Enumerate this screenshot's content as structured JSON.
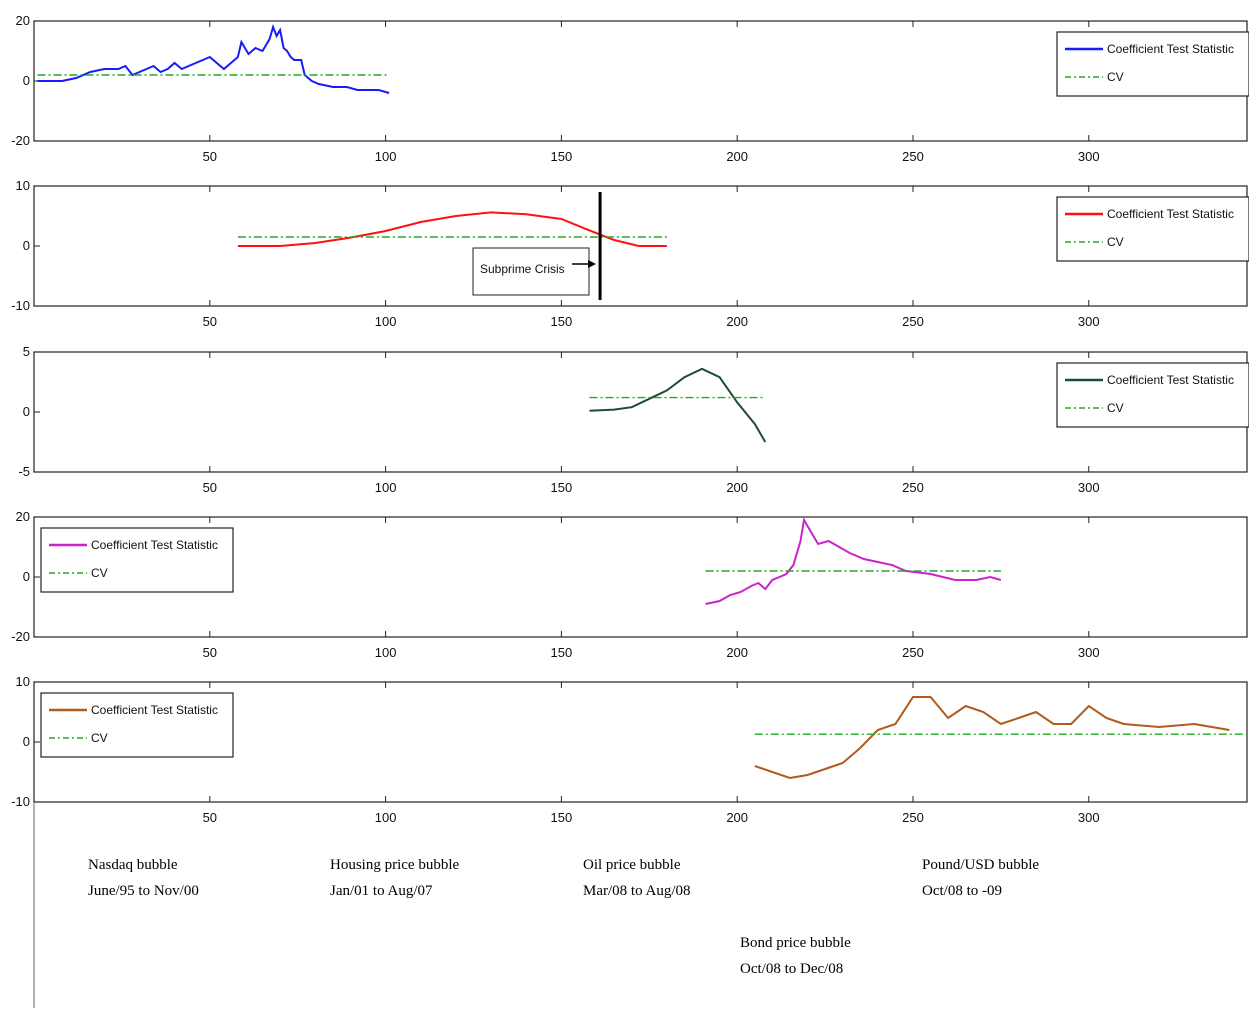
{
  "chart_data": [
    {
      "type": "line",
      "xlim": [
        0,
        345
      ],
      "ylim": [
        -20,
        20
      ],
      "x_ticks": [
        50,
        100,
        150,
        200,
        250,
        300
      ],
      "y_ticks": [
        -20,
        0,
        20
      ],
      "grid": false,
      "legend_position": "top-right",
      "legend_entries": [
        "Coefficient Test Statistic",
        "CV"
      ],
      "series": [
        {
          "name": "Coefficient Test Statistic",
          "color": "#1a1aff",
          "style": "solid",
          "points": [
            [
              1,
              0
            ],
            [
              8,
              0
            ],
            [
              12,
              1
            ],
            [
              16,
              3
            ],
            [
              20,
              4
            ],
            [
              24,
              4
            ],
            [
              26,
              5
            ],
            [
              28,
              2
            ],
            [
              30,
              3
            ],
            [
              32,
              4
            ],
            [
              34,
              5
            ],
            [
              36,
              3
            ],
            [
              38,
              4
            ],
            [
              40,
              6
            ],
            [
              42,
              4
            ],
            [
              44,
              5
            ],
            [
              46,
              6
            ],
            [
              48,
              7
            ],
            [
              50,
              8
            ],
            [
              52,
              6
            ],
            [
              54,
              4
            ],
            [
              56,
              6
            ],
            [
              58,
              8
            ],
            [
              59,
              13
            ],
            [
              61,
              9
            ],
            [
              63,
              11
            ],
            [
              65,
              10
            ],
            [
              67,
              14
            ],
            [
              68,
              18
            ],
            [
              69,
              15
            ],
            [
              70,
              17
            ],
            [
              71,
              11
            ],
            [
              72,
              10
            ],
            [
              73,
              8
            ],
            [
              74,
              7
            ],
            [
              76,
              7
            ],
            [
              77,
              2
            ],
            [
              79,
              0
            ],
            [
              81,
              -1
            ],
            [
              85,
              -2
            ],
            [
              89,
              -2
            ],
            [
              92,
              -3
            ],
            [
              95,
              -3
            ],
            [
              98,
              -3
            ],
            [
              101,
              -4
            ]
          ]
        },
        {
          "name": "CV",
          "color": "#22aa22",
          "style": "dash-dot",
          "points": [
            [
              1,
              2
            ],
            [
              101,
              2
            ]
          ]
        }
      ]
    },
    {
      "type": "line",
      "xlim": [
        0,
        345
      ],
      "ylim": [
        -10,
        10
      ],
      "x_ticks": [
        50,
        100,
        150,
        200,
        250,
        300
      ],
      "y_ticks": [
        -10,
        0,
        10
      ],
      "grid": false,
      "legend_position": "top-right",
      "legend_entries": [
        "Coefficient Test Statistic",
        "CV"
      ],
      "annotation": "Subprime Crisis",
      "event_x": 161,
      "series": [
        {
          "name": "Coefficient Test Statistic",
          "color": "#ff1111",
          "style": "solid",
          "points": [
            [
              58,
              0
            ],
            [
              70,
              0
            ],
            [
              80,
              0.5
            ],
            [
              90,
              1.4
            ],
            [
              100,
              2.5
            ],
            [
              110,
              4
            ],
            [
              120,
              5
            ],
            [
              130,
              5.6
            ],
            [
              140,
              5.3
            ],
            [
              150,
              4.5
            ],
            [
              158,
              2.6
            ],
            [
              165,
              1
            ],
            [
              172,
              0
            ],
            [
              180,
              0
            ]
          ]
        },
        {
          "name": "CV",
          "color": "#22aa22",
          "style": "dash-dot",
          "points": [
            [
              58,
              1.5
            ],
            [
              180,
              1.5
            ]
          ]
        }
      ]
    },
    {
      "type": "line",
      "xlim": [
        0,
        345
      ],
      "ylim": [
        -5,
        5
      ],
      "x_ticks": [
        50,
        100,
        150,
        200,
        250,
        300
      ],
      "y_ticks": [
        -5,
        0,
        5
      ],
      "grid": false,
      "legend_position": "top-right",
      "legend_entries": [
        "Coefficient Test Statistic",
        "CV"
      ],
      "series": [
        {
          "name": "Coefficient Test Statistic",
          "color": "#1e4a3a",
          "style": "solid",
          "points": [
            [
              158,
              0.1
            ],
            [
              165,
              0.2
            ],
            [
              170,
              0.4
            ],
            [
              175,
              1.1
            ],
            [
              180,
              1.8
            ],
            [
              185,
              2.9
            ],
            [
              190,
              3.6
            ],
            [
              195,
              2.9
            ],
            [
              200,
              0.8
            ],
            [
              205,
              -1
            ],
            [
              208,
              -2.5
            ]
          ]
        },
        {
          "name": "CV",
          "color": "#22aa22",
          "style": "dash-dot",
          "points": [
            [
              158,
              1.2
            ],
            [
              208,
              1.2
            ]
          ]
        }
      ]
    },
    {
      "type": "line",
      "xlim": [
        0,
        345
      ],
      "ylim": [
        -20,
        20
      ],
      "x_ticks": [
        50,
        100,
        150,
        200,
        250,
        300
      ],
      "y_ticks": [
        -20,
        0,
        20
      ],
      "grid": false,
      "legend_position": "top-left",
      "legend_entries": [
        "Coefficient Test Statistic",
        "CV"
      ],
      "series": [
        {
          "name": "Coefficient Test Statistic",
          "color": "#cc22cc",
          "style": "solid",
          "points": [
            [
              191,
              -9
            ],
            [
              195,
              -8
            ],
            [
              198,
              -6
            ],
            [
              201,
              -5
            ],
            [
              204,
              -3
            ],
            [
              206,
              -2
            ],
            [
              208,
              -4
            ],
            [
              210,
              -1
            ],
            [
              212,
              0
            ],
            [
              214,
              1
            ],
            [
              216,
              4
            ],
            [
              218,
              12
            ],
            [
              219,
              19
            ],
            [
              221,
              15
            ],
            [
              223,
              11
            ],
            [
              226,
              12
            ],
            [
              229,
              10
            ],
            [
              232,
              8
            ],
            [
              236,
              6
            ],
            [
              240,
              5
            ],
            [
              244,
              4
            ],
            [
              248,
              2
            ],
            [
              255,
              1
            ],
            [
              262,
              -1
            ],
            [
              268,
              -1
            ],
            [
              272,
              0
            ],
            [
              275,
              -1
            ]
          ]
        },
        {
          "name": "CV",
          "color": "#22aa22",
          "style": "dash-dot",
          "points": [
            [
              191,
              2
            ],
            [
              275,
              2
            ]
          ]
        }
      ]
    },
    {
      "type": "line",
      "xlim": [
        0,
        345
      ],
      "ylim": [
        -10,
        10
      ],
      "x_ticks": [
        50,
        100,
        150,
        200,
        250,
        300
      ],
      "y_ticks": [
        -10,
        0,
        10
      ],
      "grid": false,
      "legend_position": "top-left",
      "legend_entries": [
        "Coefficient Test Statistic",
        "CV"
      ],
      "series": [
        {
          "name": "Coefficient Test Statistic",
          "color": "#b05a1e",
          "style": "solid",
          "points": [
            [
              205,
              -4
            ],
            [
              210,
              -5
            ],
            [
              215,
              -6
            ],
            [
              220,
              -5.5
            ],
            [
              225,
              -4.5
            ],
            [
              230,
              -3.5
            ],
            [
              235,
              -1
            ],
            [
              240,
              2
            ],
            [
              245,
              3
            ],
            [
              250,
              7.5
            ],
            [
              255,
              7.5
            ],
            [
              260,
              4
            ],
            [
              265,
              6
            ],
            [
              270,
              5
            ],
            [
              275,
              3
            ],
            [
              280,
              4
            ],
            [
              285,
              5
            ],
            [
              290,
              3
            ],
            [
              295,
              3
            ],
            [
              300,
              6
            ],
            [
              305,
              4
            ],
            [
              310,
              3
            ],
            [
              320,
              2.5
            ],
            [
              330,
              3
            ],
            [
              340,
              2
            ]
          ]
        },
        {
          "name": "CV",
          "color": "#22aa22",
          "style": "dash-dot",
          "points": [
            [
              205,
              1.3
            ],
            [
              345,
              1.3
            ]
          ]
        }
      ]
    }
  ],
  "annotations": [
    {
      "line1": "Nasdaq bubble",
      "line2": "June/95 to Nov/00",
      "color": "#1a1a99"
    },
    {
      "line1": "Housing price bubble",
      "line2": "Jan/01 to Aug/07",
      "color": "#cc2222"
    },
    {
      "line1": "Oil price bubble",
      "line2": "Mar/08 to Aug/08",
      "color": "#111111"
    },
    {
      "line1": "Bond price bubble",
      "line2": "Oct/08 to Dec/08",
      "color": "#aa22aa"
    },
    {
      "line1": "Pound/USD bubble",
      "line2": "Oct/08 to -09",
      "color": "#8a6a10"
    }
  ]
}
